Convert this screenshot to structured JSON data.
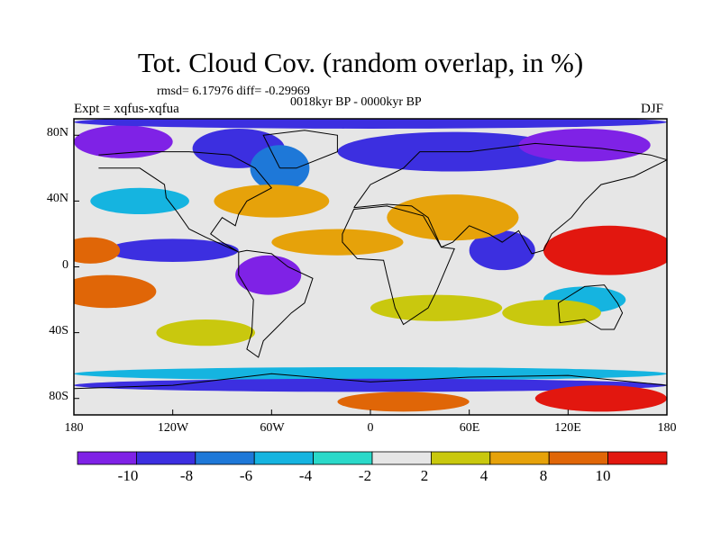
{
  "title": "Tot. Cloud Cov. (random overlap, in %)",
  "stats": "rmsd= 6.17976 diff= -0.29969",
  "period": "0018kyr BP - 0000kyr BP",
  "experiment": "Expt = xqfus-xqfua",
  "season": "DJF",
  "lat_labels": [
    "80N",
    "40N",
    "0",
    "40S",
    "80S"
  ],
  "lon_labels": [
    "180",
    "120W",
    "60W",
    "0",
    "60E",
    "120E",
    "180"
  ],
  "colorbar": {
    "labels": [
      "-10",
      "-8",
      "-6",
      "-4",
      "-2",
      "2",
      "4",
      "8",
      "10"
    ],
    "colors": [
      "#7f22e6",
      "#3c2fe0",
      "#1e78d8",
      "#15b4e0",
      "#2ad9c9",
      "#e6e6e6",
      "#c9c80e",
      "#e6a20a",
      "#e06607",
      "#e2170f"
    ]
  },
  "map_data": {
    "type": "filled-contour-map",
    "variable": "Total cloud cover difference",
    "units": "%",
    "lat_range": [
      -90,
      90
    ],
    "lon_range": [
      -180,
      180
    ],
    "background": "#e6e6e6",
    "regions": [
      {
        "lon": -150,
        "lat": 76,
        "rx": 30,
        "ry": 10,
        "level": 0
      },
      {
        "lon": -80,
        "lat": 72,
        "rx": 28,
        "ry": 12,
        "level": 1
      },
      {
        "lon": -55,
        "lat": 60,
        "rx": 18,
        "ry": 14,
        "level": 2
      },
      {
        "lon": 50,
        "lat": 70,
        "rx": 70,
        "ry": 12,
        "level": 1
      },
      {
        "lon": 130,
        "lat": 74,
        "rx": 40,
        "ry": 10,
        "level": 0
      },
      {
        "lon": 0,
        "lat": 88,
        "rx": 180,
        "ry": 4,
        "level": 1
      },
      {
        "lon": -140,
        "lat": 40,
        "rx": 30,
        "ry": 8,
        "level": 3
      },
      {
        "lon": -120,
        "lat": 10,
        "rx": 40,
        "ry": 7,
        "level": 1
      },
      {
        "lon": -62,
        "lat": -5,
        "rx": 20,
        "ry": 12,
        "level": 0
      },
      {
        "lon": 80,
        "lat": 10,
        "rx": 20,
        "ry": 12,
        "level": 1
      },
      {
        "lon": 130,
        "lat": -20,
        "rx": 25,
        "ry": 8,
        "level": 3
      },
      {
        "lon": -170,
        "lat": 10,
        "rx": 18,
        "ry": 8,
        "level": 8
      },
      {
        "lon": 145,
        "lat": 10,
        "rx": 40,
        "ry": 15,
        "level": 9
      },
      {
        "lon": 50,
        "lat": 30,
        "rx": 40,
        "ry": 14,
        "level": 7
      },
      {
        "lon": -20,
        "lat": 15,
        "rx": 40,
        "ry": 8,
        "level": 7
      },
      {
        "lon": -60,
        "lat": 40,
        "rx": 35,
        "ry": 10,
        "level": 7
      },
      {
        "lon": -160,
        "lat": -15,
        "rx": 30,
        "ry": 10,
        "level": 8
      },
      {
        "lon": 40,
        "lat": -25,
        "rx": 40,
        "ry": 8,
        "level": 6
      },
      {
        "lon": 110,
        "lat": -28,
        "rx": 30,
        "ry": 8,
        "level": 6
      },
      {
        "lon": -100,
        "lat": -40,
        "rx": 30,
        "ry": 8,
        "level": 6
      },
      {
        "lon": 0,
        "lat": -65,
        "rx": 180,
        "ry": 4,
        "level": 3
      },
      {
        "lon": 0,
        "lat": -72,
        "rx": 180,
        "ry": 4,
        "level": 1
      },
      {
        "lon": 140,
        "lat": -80,
        "rx": 40,
        "ry": 8,
        "level": 9
      },
      {
        "lon": 20,
        "lat": -82,
        "rx": 40,
        "ry": 6,
        "level": 8
      }
    ]
  }
}
